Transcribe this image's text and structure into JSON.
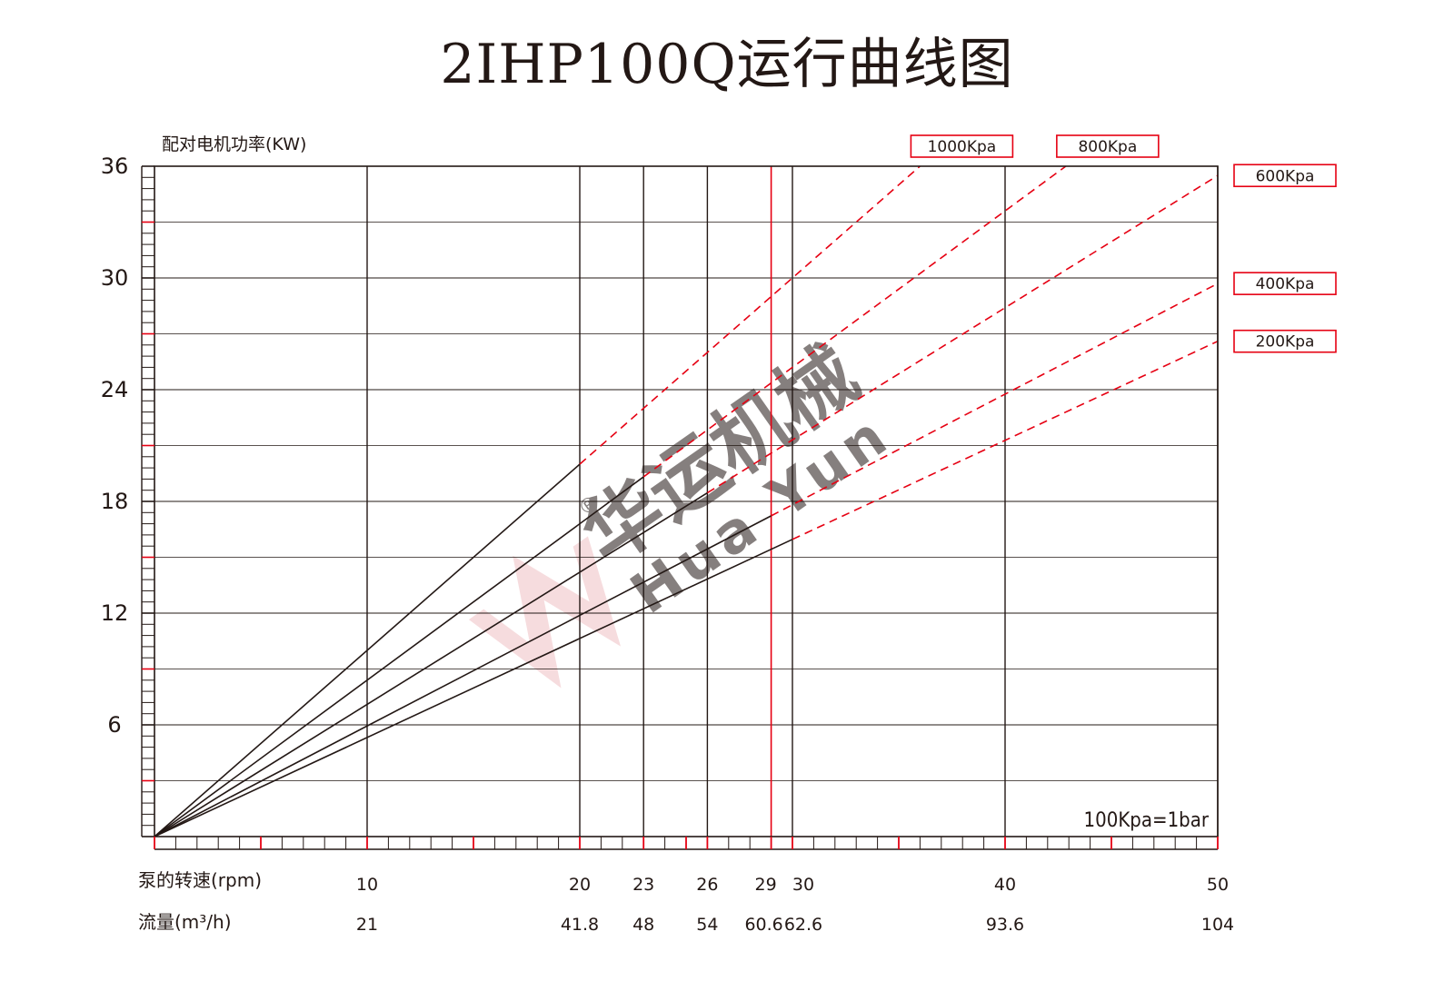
{
  "title": "2IHP100Q运行曲线图",
  "note": "100Kpa=1bar",
  "watermark": {
    "text_cn": "华运机械",
    "text_en": "Hua Yun",
    "mark": "®"
  },
  "colors": {
    "grid": "#231815",
    "accent": "#e60012",
    "watermark": "#c7cadb"
  },
  "chart_data": {
    "type": "line",
    "title": "2IHP100Q运行曲线图",
    "ylabel": "配对电机功率(KW)",
    "xlabel_speed": "泵的转速(rpm)",
    "xlabel_flow": "流量(m³/h)",
    "xlim": [
      0,
      50
    ],
    "ylim": [
      0,
      36
    ],
    "y_ticks": [
      6,
      12,
      18,
      24,
      30,
      36
    ],
    "x_ticks": [
      {
        "speed": "10",
        "flow": "21",
        "value": 10
      },
      {
        "speed": "20",
        "flow": "41.8",
        "value": 20
      },
      {
        "speed": "23",
        "flow": "48",
        "value": 23
      },
      {
        "speed": "26",
        "flow": "54",
        "value": 26
      },
      {
        "speed": "29",
        "flow": "60.6",
        "value": 29
      },
      {
        "speed": "30",
        "flow": "62.6",
        "value": 30
      },
      {
        "speed": "40",
        "flow": "93.6",
        "value": 40
      },
      {
        "speed": "50",
        "flow": "104",
        "value": 50
      }
    ],
    "highlight_x": 29,
    "grid": true,
    "series": [
      {
        "name": "1000Kpa",
        "slope": 1.0,
        "solid_to": 20,
        "values_at_x": [
          [
            20,
            20
          ],
          [
            42,
            42
          ]
        ]
      },
      {
        "name": "800Kpa",
        "slope": 0.84,
        "solid_to": 23,
        "values_at_x": [
          [
            23,
            19.3
          ],
          [
            42.9,
            36
          ]
        ]
      },
      {
        "name": "600Kpa",
        "slope": 0.71,
        "solid_to": 26,
        "values_at_x": [
          [
            26,
            18.5
          ],
          [
            50,
            35.4
          ]
        ]
      },
      {
        "name": "400Kpa",
        "slope": 0.594,
        "solid_to": 29,
        "values_at_x": [
          [
            29,
            17.2
          ],
          [
            50,
            29.7
          ]
        ]
      },
      {
        "name": "200Kpa",
        "slope": 0.532,
        "solid_to": 30,
        "values_at_x": [
          [
            30,
            16
          ],
          [
            50,
            26.6
          ]
        ]
      }
    ],
    "legend": "right, top labels boxed in red"
  }
}
